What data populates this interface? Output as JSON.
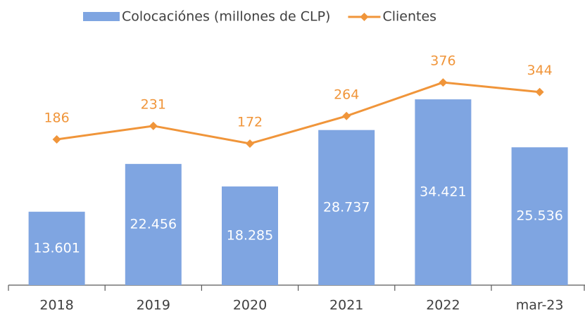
{
  "chart_data": {
    "type": "bar_line",
    "categories": [
      "2018",
      "2019",
      "2020",
      "2021",
      "2022",
      "mar-23"
    ],
    "series": [
      {
        "name": "Colocaciónes (millones de CLP)",
        "type": "bar",
        "color": "#7fa5e1",
        "values": [
          13601,
          22456,
          18285,
          28737,
          34421,
          25536
        ],
        "value_labels": [
          "13.601",
          "22.456",
          "18.285",
          "28.737",
          "34.421",
          "25.536"
        ]
      },
      {
        "name": "Clientes",
        "type": "line",
        "axis": "y2",
        "color": "#f0953a",
        "values": [
          186,
          231,
          172,
          264,
          376,
          344
        ]
      }
    ],
    "ylim": [
      0,
      45000
    ],
    "y2lim": [
      -300,
      510
    ],
    "legend": "top"
  }
}
